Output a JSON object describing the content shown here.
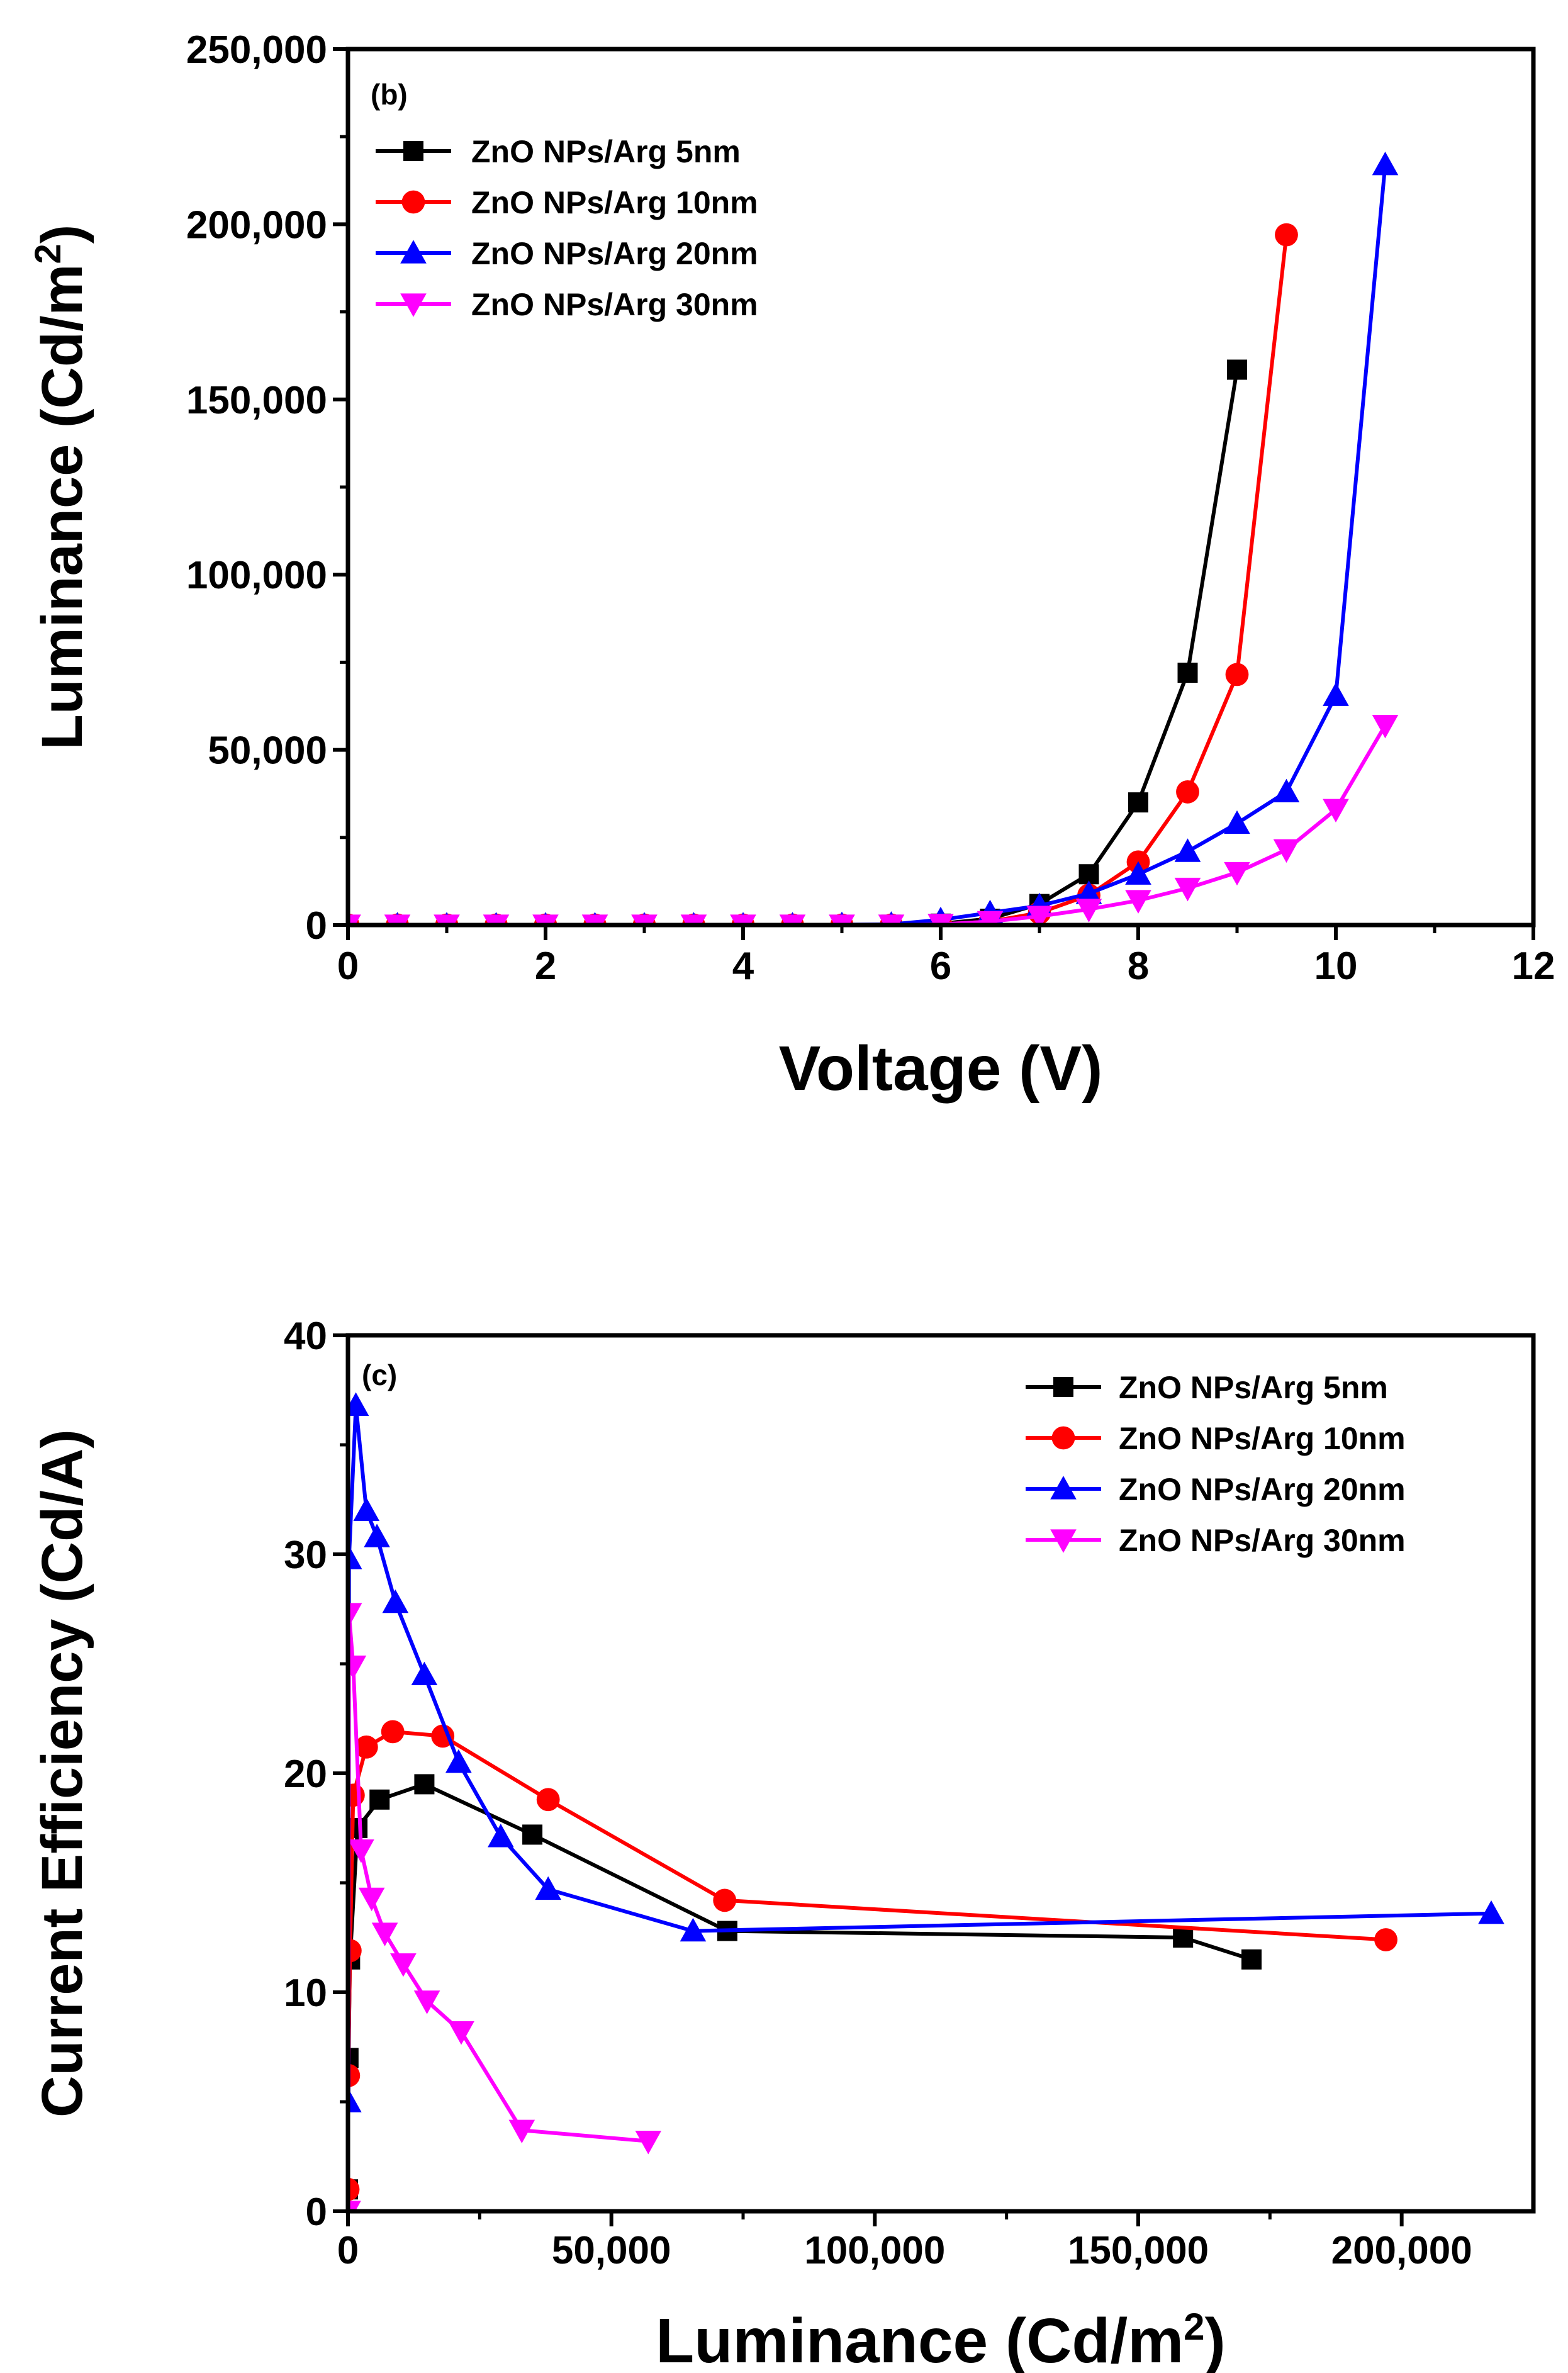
{
  "figure": {
    "colors": {
      "5nm": "#000000",
      "10nm": "#ff0000",
      "20nm": "#0000ff",
      "30nm": "#ff00ff"
    }
  },
  "chart_data": [
    {
      "id": "b",
      "panel_label": "(b)",
      "type": "line",
      "xlabel": "Voltage (V)",
      "ylabel_main": "Luminance (Cd/m",
      "ylabel_sup": "2",
      "ylabel_tail": ")",
      "xlim": [
        0,
        12
      ],
      "ylim": [
        0,
        250000
      ],
      "xticks": [
        0,
        2,
        4,
        6,
        8,
        10,
        12
      ],
      "xtick_labels": [
        "0",
        "2",
        "4",
        "6",
        "8",
        "10",
        "12"
      ],
      "yticks": [
        0,
        50000,
        100000,
        150000,
        200000,
        250000
      ],
      "ytick_labels": [
        "0",
        "50,000",
        "100,000",
        "150,000",
        "200,000",
        "250,000"
      ],
      "legend_position": "top-left",
      "series": [
        {
          "name": "ZnO NPs/Arg 5nm",
          "color": "#000000",
          "marker": "square",
          "x": [
            0,
            0.5,
            1,
            1.5,
            2,
            2.5,
            3,
            3.5,
            4,
            4.5,
            5,
            5.5,
            6,
            6.5,
            7,
            7.5,
            8,
            8.5,
            9
          ],
          "y": [
            0,
            0,
            0,
            0,
            0,
            0,
            0,
            0,
            0,
            0,
            0,
            100,
            400,
            1800,
            6000,
            14500,
            35000,
            72000,
            158500
          ]
        },
        {
          "name": "ZnO NPs/Arg 10nm",
          "color": "#ff0000",
          "marker": "circle",
          "x": [
            0,
            0.5,
            1,
            1.5,
            2,
            2.5,
            3,
            3.5,
            4,
            4.5,
            5,
            5.5,
            6,
            6.5,
            7,
            7.5,
            8,
            8.5,
            9,
            9.5
          ],
          "y": [
            0,
            0,
            0,
            0,
            0,
            0,
            0,
            0,
            0,
            0,
            0,
            0,
            200,
            1000,
            3500,
            8500,
            18000,
            38000,
            71500,
            197000
          ]
        },
        {
          "name": "ZnO NPs/Arg 20nm",
          "color": "#0000ff",
          "marker": "triangle-up",
          "x": [
            0,
            0.5,
            1,
            1.5,
            2,
            2.5,
            3,
            3.5,
            4,
            4.5,
            5,
            5.5,
            6,
            6.5,
            7,
            7.5,
            8,
            8.5,
            9,
            9.5,
            10,
            10.5
          ],
          "y": [
            0,
            0,
            0,
            0,
            0,
            0,
            0,
            0,
            0,
            0,
            100,
            200,
            1500,
            3500,
            5500,
            9000,
            14500,
            21000,
            29000,
            38000,
            65500,
            217000
          ]
        },
        {
          "name": "ZnO NPs/Arg 30nm",
          "color": "#ff00ff",
          "marker": "triangle-down",
          "x": [
            0,
            0.5,
            1,
            1.5,
            2,
            2.5,
            3,
            3.5,
            4,
            4.5,
            5,
            5.5,
            6,
            6.5,
            7,
            7.5,
            8,
            8.5,
            9,
            9.5,
            10,
            10.5
          ],
          "y": [
            0,
            0,
            0,
            0,
            0,
            0,
            0,
            0,
            0,
            0,
            0,
            0,
            200,
            1000,
            2500,
            4500,
            7000,
            10500,
            15000,
            21500,
            33000,
            57000
          ]
        }
      ]
    },
    {
      "id": "c",
      "panel_label": "(c)",
      "type": "line",
      "xlabel_main": "Luminance (Cd/m",
      "xlabel_sup": "2",
      "xlabel_tail": ")",
      "ylabel": "Current Efficiency (Cd/A)",
      "xlim": [
        0,
        225000
      ],
      "ylim": [
        0,
        40
      ],
      "xticks": [
        0,
        50000,
        100000,
        150000,
        200000
      ],
      "xtick_labels": [
        "0",
        "50,000",
        "100,000",
        "150,000",
        "200,000"
      ],
      "yticks": [
        0,
        10,
        20,
        30,
        40
      ],
      "ytick_labels": [
        "0",
        "10",
        "20",
        "30",
        "40"
      ],
      "legend_position": "top-right",
      "series": [
        {
          "name": "ZnO NPs/Arg 5nm",
          "color": "#000000",
          "marker": "square",
          "x": [
            0,
            100,
            400,
            1800,
            6000,
            14500,
            35000,
            72000,
            158500,
            171500
          ],
          "y": [
            1,
            7,
            11.5,
            17.5,
            18.8,
            19.5,
            17.2,
            12.8,
            12.5,
            11.5
          ]
        },
        {
          "name": "ZnO NPs/Arg 10nm",
          "color": "#ff0000",
          "marker": "circle",
          "x": [
            0,
            100,
            400,
            1000,
            3500,
            8500,
            18000,
            38000,
            71500,
            197000
          ],
          "y": [
            1,
            6.2,
            11.9,
            19.0,
            21.2,
            21.9,
            21.7,
            18.8,
            14.2,
            12.4
          ]
        },
        {
          "name": "ZnO NPs/Arg 20nm",
          "color": "#0000ff",
          "marker": "triangle-up",
          "x": [
            100,
            200,
            1500,
            3500,
            5500,
            9000,
            14500,
            21000,
            29000,
            38000,
            65500,
            217000
          ],
          "y": [
            5.0,
            29.8,
            36.8,
            32.0,
            30.8,
            27.8,
            24.5,
            20.5,
            17.1,
            14.7,
            12.8,
            13.6
          ]
        },
        {
          "name": "ZnO NPs/Arg 30nm",
          "color": "#ff00ff",
          "marker": "triangle-down",
          "x": [
            0,
            200,
            1000,
            2500,
            4500,
            7000,
            10500,
            15000,
            21500,
            33000,
            57000
          ],
          "y": [
            0,
            27.3,
            24.9,
            16.5,
            14.3,
            12.7,
            11.3,
            9.6,
            8.2,
            3.7,
            3.2
          ]
        }
      ]
    }
  ]
}
